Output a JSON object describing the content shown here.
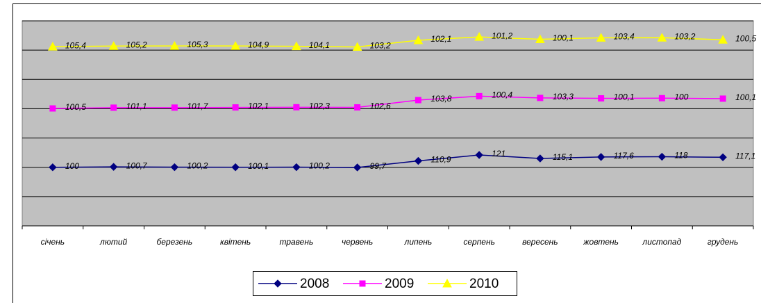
{
  "chart_data": {
    "type": "line",
    "stacked": true,
    "grid": true,
    "categories": [
      "січень",
      "лютий",
      "березень",
      "квітень",
      "травень",
      "червень",
      "липень",
      "серпень",
      "вересень",
      "жовтень",
      "листопад",
      "грудень"
    ],
    "ylim": [
      0,
      350
    ],
    "yticks": [
      0,
      50,
      100,
      150,
      200,
      250,
      300,
      350
    ],
    "series": [
      {
        "name": "2008",
        "color": "#000080",
        "marker": "diamond",
        "values": [
          100,
          100.7,
          100.2,
          100.1,
          100.2,
          99.7,
          110.9,
          121,
          115.1,
          117.6,
          118,
          117.1
        ],
        "value_labels": [
          "100",
          "100,7",
          "100,2",
          "100,1",
          "100,2",
          "99,7",
          "110,9",
          "121",
          "115,1",
          "117,6",
          "118",
          "117,1"
        ]
      },
      {
        "name": "2009",
        "color": "#ff00ff",
        "marker": "square",
        "values": [
          100.5,
          101.1,
          101.7,
          102.1,
          102.3,
          102.6,
          103.8,
          100.4,
          103.3,
          100.1,
          100,
          100.1
        ],
        "value_labels": [
          "100,5",
          "101,1",
          "101,7",
          "102,1",
          "102,3",
          "102,6",
          "103,8",
          "100,4",
          "103,3",
          "100,1",
          "100",
          "100,1"
        ]
      },
      {
        "name": "2010",
        "color": "#ffff00",
        "marker": "triangle",
        "values": [
          105.4,
          105.2,
          105.3,
          104.9,
          104.1,
          103.2,
          102.1,
          101.2,
          100.1,
          103.4,
          103.2,
          100.5
        ],
        "value_labels": [
          "105,4",
          "105,2",
          "105,3",
          "104,9",
          "104,1",
          "103,2",
          "102,1",
          "101,2",
          "100,1",
          "103,4",
          "103,2",
          "100,5"
        ]
      }
    ]
  }
}
